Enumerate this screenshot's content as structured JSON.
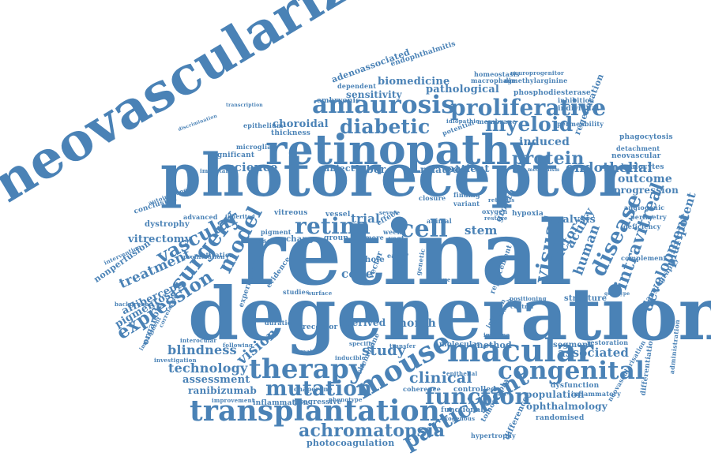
{
  "colors": {
    "word": "#4a82b6",
    "background": "#ffffff"
  },
  "words": {
    "retinal": "retinal",
    "degeneration": "degeneration",
    "photoreceptor": "photoreceptor",
    "neovascularization": "neovascularization",
    "retinopathy": "retinopathy",
    "transplantation": "transplantation",
    "macular": "macular",
    "amaurosis": "amaurosis",
    "proliferative": "proliferative",
    "therapy": "therapy",
    "congenital": "congenital",
    "mouse": "mouse",
    "function": "function",
    "mutation": "mutation",
    "participant": "participant",
    "achromatopsia": "achromatopsia",
    "diabetic": "diabetic",
    "myeloid": "myeloid",
    "retina": "retina",
    "cell": "cell",
    "surgery": "surgery",
    "model": "model",
    "vascular": "vascular",
    "expression": "expression",
    "disease": "disease",
    "visual": "visual",
    "protein": "protein",
    "endothelial": "endothelial",
    "intravitreal": "intravitreal",
    "development": "development",
    "pluripotent": "pluripotent",
    "clinical": "clinical",
    "study": "study",
    "vision": "vision",
    "technology": "technology",
    "blindness": "blindness",
    "assessment": "assessment",
    "ranibizumab": "ranibizumab",
    "treatment": "treatment",
    "aflibercept": "aflibercept",
    "pigmentosa": "pigmentosa",
    "vitrectomy": "vitrectomy",
    "associated": "associated",
    "ophthalmology": "ophthalmology",
    "population": "population",
    "biomedicine": "biomedicine",
    "pathological": "pathological",
    "sensitivity": "sensitivity",
    "choroidal": "choroidal",
    "science": "science",
    "induced": "induced",
    "outcome": "outcome",
    "progression": "progression",
    "analysis": "analysis",
    "acuity": "acuity",
    "human": "human",
    "factor": "factor",
    "stem": "stem",
    "trial": "trial",
    "cone": "cone",
    "leber": "leber",
    "patient": "patient",
    "related": "related",
    "subject": "subject",
    "growth": "growth",
    "method": "method",
    "regeneration": "regeneration",
    "adenoassociated": "adenoassociated",
    "endophthalmitis": "endophthalmitis",
    "photocoagulation": "photocoagulation",
    "nonperfusion": "nonperfusion",
    "organoid": "organoid",
    "experimental": "experimental",
    "evidence": "evidence",
    "chemokine": "chemokine",
    "tomography": "tomography",
    "difference": "difference",
    "differentiation": "differentiation",
    "angiography": "angiography",
    "hyalocytes": "hyalocytes",
    "neovascular": "neovascular",
    "phagocytosis": "phagocytosis",
    "dystrophy": "dystrophy",
    "conclusion": "conclusion",
    "inflammation": "inflammation",
    "progressive": "progressive",
    "controlled": "controlled",
    "functional": "functional",
    "randomised": "randomised",
    "hypertrophy": "hypertrophy",
    "coherence": "coherence",
    "dysfunction": "dysfunction",
    "segment": "segment",
    "restoration": "restoration",
    "inflammatory": "inflammatory",
    "neovascularisation": "neovascularisation",
    "administration": "administration",
    "structure": "structure",
    "complement": "complement",
    "deficiency": "deficiency",
    "perimetry": "perimetry",
    "angiogenic": "angiogenic",
    "detachment": "detachment",
    "immunity": "immunity",
    "permeability": "permeability",
    "individual": "individual",
    "inhibition": "inhibition",
    "phosphodiesterase": "phosphodiesterase",
    "dimethylarginine": "dimethylarginine",
    "neuroprogenitor": "neuroprogenitor",
    "homeostasis": "homeostasis",
    "macrophage": "macrophage",
    "embryonic": "embryonic",
    "dependent": "dependent",
    "epithelium": "epithelium",
    "thickness": "thickness",
    "microglia": "microglia",
    "significant": "significant",
    "important": "important",
    "autoimmune": "autoimmune",
    "advanced": "advanced",
    "inherited": "inherited",
    "pigment": "pigment",
    "change": "change",
    "baseline": "baseline",
    "group": "group",
    "vessel": "vessel",
    "vitreous": "vitreous",
    "hypoxia": "hypoxia",
    "stem2": "retinitis",
    "finding": "finding",
    "variant": "variant",
    "oxygen": "oxygen",
    "restore": "restore",
    "animal": "animal",
    "closure": "closure",
    "potential": "potential",
    "idiopathic": "idiopathic",
    "membrane": "membrane",
    "severe": "severe",
    "effect": "effect",
    "mechanism": "mechanism",
    "derived": "derived",
    "receptor": "receptor",
    "duration": "duration",
    "studies": "studies",
    "surface": "surface",
    "month": "month",
    "molecular": "molecular",
    "immune": "immune",
    "injection": "injection",
    "research": "research",
    "central": "central",
    "replacement": "replacement",
    "positioning": "positioning",
    "specific": "specific",
    "inducible": "inducible",
    "transfer": "transfer",
    "chaperone": "chaperone",
    "phenotype": "phenotype",
    "epithelial": "epithelial",
    "improvement": "improvement",
    "exogenous": "exogenous",
    "proliferation": "proliferation",
    "activation": "activation",
    "intervention": "intervention",
    "background": "background",
    "investigation": "investigation",
    "interocular": "interocular",
    "impairment": "impairment",
    "following": "following",
    "correlation": "correlation",
    "week": "week",
    "vegf": "vegf",
    "more": "more",
    "hole": "hole",
    "vector": "vector",
    "genetic": "genetic",
    "genotype": "genotype",
    "tissue": "tissue",
    "result": "result",
    "early": "early",
    "domain": "domain",
    "transcription": "transcription",
    "discrimination": "discrimination"
  }
}
